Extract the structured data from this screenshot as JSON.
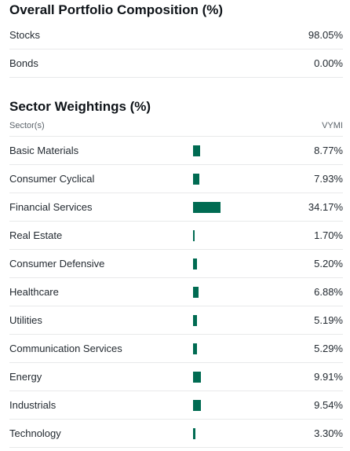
{
  "composition": {
    "title": "Overall Portfolio Composition (%)",
    "items": [
      {
        "label": "Stocks",
        "value": "98.05%"
      },
      {
        "label": "Bonds",
        "value": "0.00%"
      }
    ]
  },
  "sectors": {
    "title": "Sector Weightings (%)",
    "column_sector": "Sector(s)",
    "column_fund": "VYMI",
    "bar_color": "#006b52",
    "items": [
      {
        "label": "Basic Materials",
        "value": "8.77%",
        "pct": 8.77
      },
      {
        "label": "Consumer Cyclical",
        "value": "7.93%",
        "pct": 7.93
      },
      {
        "label": "Financial Services",
        "value": "34.17%",
        "pct": 34.17
      },
      {
        "label": "Real Estate",
        "value": "1.70%",
        "pct": 1.7
      },
      {
        "label": "Consumer Defensive",
        "value": "5.20%",
        "pct": 5.2
      },
      {
        "label": "Healthcare",
        "value": "6.88%",
        "pct": 6.88
      },
      {
        "label": "Utilities",
        "value": "5.19%",
        "pct": 5.19
      },
      {
        "label": "Communication Services",
        "value": "5.29%",
        "pct": 5.29
      },
      {
        "label": "Energy",
        "value": "9.91%",
        "pct": 9.91
      },
      {
        "label": "Industrials",
        "value": "9.54%",
        "pct": 9.54
      },
      {
        "label": "Technology",
        "value": "3.30%",
        "pct": 3.3
      }
    ]
  }
}
